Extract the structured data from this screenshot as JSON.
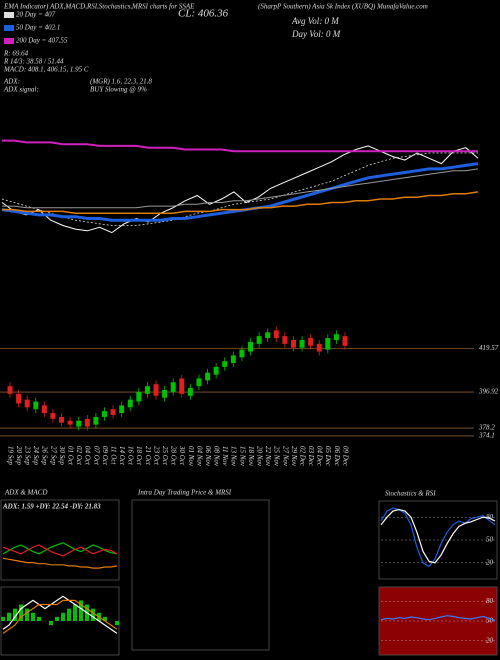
{
  "header": {
    "title": "EMA Indicator) ADX,MACD,RSI,Stochastics,MRSI charts for SSAE",
    "close": "CL: 406.36",
    "source": "(SharpP Southern) Asia Sk Index (XUBQ) MunafaValue.com",
    "avg_vol": "Avg Vol: 0 M",
    "day_vol": "Day Vol: 0 M",
    "stats": [
      "R: 69.64",
      "R 14/3: 38.58 / 51.44",
      "MACD: 408.1, 406.15, 1.95 C"
    ],
    "adx": [
      "ADX:",
      "(MGR) 1.6, 22.3, 21.8"
    ],
    "adx_signal": [
      "ADX signal:",
      "BUY Slowing @ 9%"
    ]
  },
  "chart_data": [
    {
      "type": "line",
      "ylim": [
        372,
        437
      ],
      "series": [
        {
          "color": "#ffffff",
          "values": [
            396,
            391,
            389,
            392,
            386,
            383,
            381,
            380,
            382,
            379,
            384,
            387,
            385,
            390,
            393,
            397,
            400,
            395,
            398,
            402,
            396,
            399,
            404,
            407,
            410,
            413,
            416,
            419,
            423,
            426,
            428,
            425,
            422,
            420,
            424,
            421,
            418,
            425,
            427,
            421
          ]
        },
        {
          "name": "20 Day = 407",
          "color": "#dddddd",
          "dash": true,
          "values": [
            398,
            396,
            394,
            392,
            390,
            388,
            386,
            385,
            384,
            383,
            383,
            383,
            384,
            385,
            386,
            388,
            390,
            391,
            393,
            395,
            396,
            397,
            398,
            400,
            402,
            404,
            406,
            408,
            411,
            414,
            417,
            419,
            421,
            422,
            423,
            424,
            424,
            424,
            424,
            424
          ]
        },
        {
          "name": "50 Day = 402.1",
          "color": "#1e5fe0",
          "values": [
            392,
            391,
            390,
            389,
            389,
            388,
            388,
            387,
            387,
            386,
            386,
            386,
            386,
            386,
            387,
            387,
            388,
            389,
            390,
            391,
            392,
            393,
            394,
            396,
            398,
            400,
            402,
            404,
            406,
            408,
            410,
            411,
            412,
            413,
            414,
            415,
            415,
            416,
            417,
            418
          ]
        },
        {
          "color": "#e07b00",
          "values": [
            392,
            392,
            391,
            391,
            391,
            391,
            390,
            390,
            390,
            390,
            390,
            390,
            390,
            390,
            390,
            391,
            391,
            391,
            392,
            392,
            392,
            393,
            393,
            394,
            394,
            395,
            395,
            396,
            396,
            397,
            397,
            398,
            398,
            399,
            399,
            400,
            400,
            401,
            401,
            402
          ]
        },
        {
          "color": "#999999",
          "values": [
            394,
            394,
            393,
            393,
            393,
            393,
            393,
            393,
            393,
            393,
            393,
            393,
            394,
            394,
            394,
            395,
            395,
            396,
            396,
            397,
            397,
            398,
            399,
            400,
            401,
            402,
            403,
            404,
            405,
            406,
            407,
            408,
            409,
            410,
            411,
            412,
            413,
            414,
            414,
            415
          ]
        },
        {
          "name": "200 Day = 407.55",
          "color": "#d020c0",
          "values": [
            431,
            431,
            430,
            430,
            430,
            429,
            429,
            429,
            428,
            428,
            428,
            428,
            427,
            427,
            427,
            426,
            426,
            426,
            426,
            425,
            425,
            425,
            425,
            425,
            425,
            425,
            425,
            425,
            425,
            425,
            425,
            425,
            425,
            425,
            425,
            425,
            425,
            425,
            425,
            425
          ]
        }
      ]
    },
    {
      "type": "candlestick",
      "ylim": [
        372,
        437
      ],
      "yticks": [
        419.57,
        396.92,
        378.2,
        374.1
      ],
      "grid_color": "#8b5a2b",
      "up_color": "#00c000",
      "down_color": "#e02020",
      "categories": [
        "19 Sep",
        "20 Sep",
        "23 Sep",
        "24 Sep",
        "26 Sep",
        "27 Sep",
        "30 Sep",
        "01 Oct",
        "02 Oct",
        "04 Oct",
        "07 Oct",
        "09 Oct",
        "11 Oct",
        "14 Oct",
        "16 Oct",
        "18 Oct",
        "21 Oct",
        "23 Oct",
        "25 Oct",
        "28 Oct",
        "30 Oct",
        "01 Nov",
        "04 Nov",
        "06 Nov",
        "08 Nov",
        "11 Nov",
        "13 Nov",
        "15 Nov",
        "18 Nov",
        "20 Nov",
        "22 Nov",
        "25 Nov",
        "27 Nov",
        "29 Nov",
        "02 Dec",
        "03 Dec",
        "04 Dec",
        "05 Dec",
        "06 Dec",
        "09 Dec"
      ],
      "open": [
        400,
        396,
        393,
        388,
        390,
        386,
        384,
        382,
        379,
        383,
        380,
        384,
        388,
        386,
        389,
        392,
        396,
        401,
        394,
        397,
        404,
        395,
        400,
        403,
        406,
        410,
        412,
        415,
        418,
        422,
        425,
        429,
        426,
        424,
        420,
        425,
        422,
        419,
        424,
        426
      ],
      "high": [
        402,
        398,
        395,
        394,
        392,
        388,
        386,
        384,
        384,
        385,
        386,
        389,
        390,
        392,
        395,
        399,
        402,
        403,
        400,
        404,
        406,
        401,
        406,
        409,
        412,
        415,
        418,
        421,
        425,
        428,
        430,
        431,
        428,
        426,
        426,
        427,
        424,
        427,
        429,
        428
      ],
      "low": [
        394,
        389,
        387,
        386,
        384,
        381,
        379,
        378,
        377,
        377,
        378,
        382,
        383,
        384,
        387,
        390,
        394,
        393,
        392,
        395,
        394,
        393,
        398,
        401,
        404,
        408,
        410,
        413,
        416,
        420,
        423,
        423,
        420,
        418,
        418,
        419,
        416,
        417,
        422,
        419
      ],
      "close": [
        396,
        391,
        389,
        392,
        386,
        383,
        381,
        380,
        382,
        379,
        384,
        387,
        385,
        390,
        393,
        397,
        400,
        395,
        398,
        402,
        396,
        399,
        404,
        407,
        410,
        413,
        416,
        419,
        423,
        426,
        428,
        425,
        422,
        420,
        424,
        421,
        418,
        425,
        427,
        421
      ]
    },
    {
      "type": "line",
      "title": "ADX & MACD",
      "subtitle": "ADX: 1.59 +DY: 22.54 -DY: 21.83",
      "ylim": [
        0,
        60
      ],
      "series": [
        {
          "color": "#00c000",
          "values": [
            22,
            25,
            28,
            30,
            27,
            24,
            22,
            25,
            28,
            30,
            32,
            29,
            26,
            24,
            27,
            30,
            28,
            25,
            23,
            22
          ]
        },
        {
          "color": "#e02020",
          "values": [
            28,
            26,
            24,
            22,
            25,
            28,
            30,
            27,
            24,
            22,
            20,
            23,
            26,
            28,
            25,
            22,
            24,
            26,
            25,
            22
          ]
        },
        {
          "color": "#e07b00",
          "values": [
            18,
            17,
            16,
            15,
            14,
            14,
            13,
            13,
            12,
            12,
            12,
            11,
            11,
            10,
            10,
            9,
            9,
            10,
            10,
            11
          ]
        }
      ]
    },
    {
      "type": "line",
      "ylim": [
        -8,
        8
      ],
      "series": [
        {
          "color": "#00c000",
          "bars": true,
          "values": [
            1,
            2,
            3,
            4,
            3,
            2,
            1,
            0,
            -1,
            1,
            2,
            3,
            4,
            5,
            4,
            3,
            2,
            1,
            0,
            -1
          ]
        },
        {
          "color": "#ffffff",
          "values": [
            -2,
            -1,
            1,
            3,
            4,
            5,
            4,
            3,
            4,
            5,
            6,
            5,
            4,
            3,
            2,
            1,
            0,
            -1,
            -2,
            -3
          ]
        },
        {
          "color": "#e07b00",
          "values": [
            -3,
            -2,
            -1,
            1,
            2,
            3,
            4,
            4,
            4,
            4,
            5,
            5,
            5,
            4,
            3,
            2,
            1,
            0,
            -1,
            -2
          ]
        }
      ]
    },
    {
      "type": "line",
      "title": "Intra Day Trading Price & MRSI",
      "series": []
    },
    {
      "type": "line",
      "title": "Stochastics & RSI",
      "ylim": [
        0,
        100
      ],
      "yticks": [
        20,
        50,
        80
      ],
      "series": [
        {
          "color": "#1e5fe0",
          "values": [
            75,
            88,
            92,
            90,
            85,
            70,
            40,
            20,
            15,
            25,
            45,
            60,
            70,
            75,
            72,
            78,
            80,
            82,
            76,
            70
          ]
        },
        {
          "color": "#ffffff",
          "values": [
            70,
            80,
            88,
            90,
            88,
            80,
            60,
            35,
            22,
            20,
            30,
            45,
            58,
            68,
            72,
            74,
            77,
            80,
            79,
            75
          ]
        }
      ]
    },
    {
      "type": "line",
      "background": "#8b0000",
      "ylim": [
        0,
        100
      ],
      "yticks": [
        20,
        50,
        80
      ],
      "series": [
        {
          "color": "#3a7bff",
          "values": [
            52,
            54,
            53,
            55,
            54,
            56,
            55,
            53,
            52,
            54,
            56,
            58,
            57,
            55,
            54,
            53,
            55,
            57,
            54,
            51
          ]
        }
      ]
    }
  ]
}
